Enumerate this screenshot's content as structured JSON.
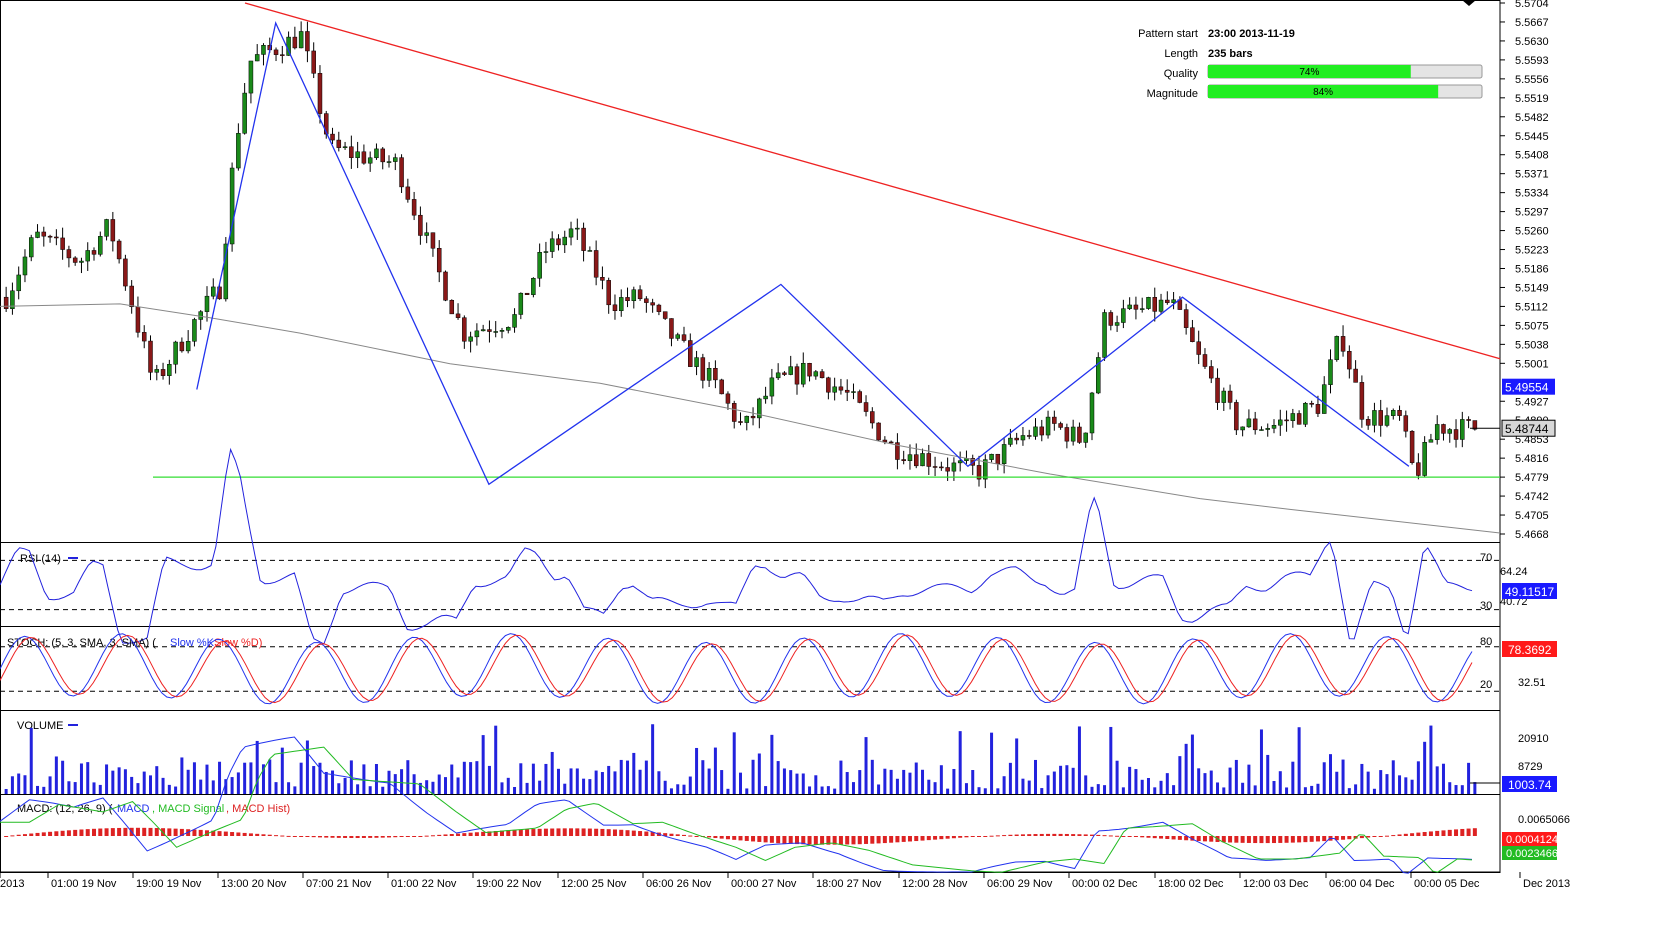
{
  "chart_data": {
    "type": "candlestick",
    "pattern_info": {
      "rows": [
        {
          "label": "Pattern start",
          "value": "23:00 2013-11-19"
        },
        {
          "label": "Length",
          "value": "235 bars"
        }
      ],
      "quality": {
        "label": "Quality",
        "value": "74%",
        "fraction": 0.74
      },
      "magnitude": {
        "label": "Magnitude",
        "value": "84%",
        "fraction": 0.84
      }
    },
    "price_axis": {
      "ticks": [
        "5.5704",
        "5.5667",
        "5.5630",
        "5.5593",
        "5.5556",
        "5.5519",
        "5.5482",
        "5.5445",
        "5.5408",
        "5.5371",
        "5.5334",
        "5.5297",
        "5.5260",
        "5.5223",
        "5.5186",
        "5.5149",
        "5.5112",
        "5.5075",
        "5.5038",
        "5.5001",
        "5.4927",
        "5.4853",
        "5.4816",
        "5.4779",
        "5.4742",
        "5.4705",
        "5.4668"
      ],
      "ylim": [
        5.4668,
        5.5704
      ],
      "current_badge": "5.48744",
      "ma_badge": "5.49554",
      "hidden_tick": "5.4890"
    },
    "x_axis": {
      "labels": [
        "2013",
        "01:00 19 Nov",
        "19:00 19 Nov",
        "13:00 20 Nov",
        "07:00 21 Nov",
        "01:00 22 Nov",
        "19:00 22 Nov",
        "12:00 25 Nov",
        "06:00 26 Nov",
        "00:00 27 Nov",
        "18:00 27 Nov",
        "12:00 28 Nov",
        "06:00 29 Nov",
        "00:00 02 Dec",
        "18:00 02 Dec",
        "12:00 03 Dec",
        "06:00 04 Dec",
        "00:00 05 Dec",
        "Dec 2013"
      ]
    },
    "ma_path": [
      [
        0,
        5.5112
      ],
      [
        0.08,
        5.5117
      ],
      [
        0.14,
        5.509
      ],
      [
        0.2,
        5.506
      ],
      [
        0.3,
        5.5
      ],
      [
        0.4,
        5.4962
      ],
      [
        0.5,
        5.4905
      ],
      [
        0.6,
        5.484
      ],
      [
        0.7,
        5.4785
      ],
      [
        0.8,
        5.4737
      ],
      [
        0.86,
        5.4716
      ],
      [
        1.0,
        5.467
      ]
    ],
    "pattern_zigzag": [
      [
        5.495,
        0.03
      ],
      [
        5.5665,
        0.084
      ],
      [
        5.4765,
        0.23
      ],
      [
        5.5155,
        0.43
      ],
      [
        5.48,
        0.558
      ],
      [
        5.513,
        0.705
      ],
      [
        5.48,
        0.86
      ]
    ],
    "resistance_line": [
      [
        5.5704,
        0.0
      ],
      [
        5.501,
        1.0
      ]
    ],
    "support_level": 5.4779,
    "indicators": {
      "rsi": {
        "title": "RSI (14)",
        "ticks": [
          "70",
          "64.24",
          "40.72",
          "30"
        ],
        "badge": "49.11517",
        "levels": [
          70,
          30
        ]
      },
      "stoch": {
        "title": "STOCH: (5, 3, SMA, 3, SMA)",
        "series": [
          "Slow %K",
          "Slow %D"
        ],
        "ticks": [
          "80",
          "32.51",
          "20"
        ],
        "badge": "78.3692",
        "levels": [
          80,
          20
        ]
      },
      "volume": {
        "title": "VOLUME",
        "ticks": [
          "20910",
          "8729"
        ],
        "badge": "1003.74"
      },
      "macd": {
        "title": "MACD: (12, 26, 9)",
        "series": [
          "MACD",
          "MACD Signal",
          "MACD Hist"
        ],
        "ticks": [
          "0.0065066"
        ],
        "badge_hist": "0.0004124",
        "badge_macd": "0.0023466"
      }
    },
    "colors": {
      "bull": "#1a8a1a",
      "bear": "#8a1818",
      "zigzag": "#2233ee",
      "resistance": "#ee2222",
      "support": "#33dd33",
      "ma": "#888888",
      "rsi": "#2222dd",
      "stoch_k": "#2233ee",
      "stoch_d": "#ee2222",
      "volume": "#2222dd",
      "macd": "#2233ee",
      "signal": "#22bb22",
      "hist": "#dd2222",
      "badge_blue": "#1a1aff",
      "badge_red": "#ff1a1a",
      "badge_gray": "#d8d8d8",
      "quality_green": "#22ee22"
    }
  }
}
